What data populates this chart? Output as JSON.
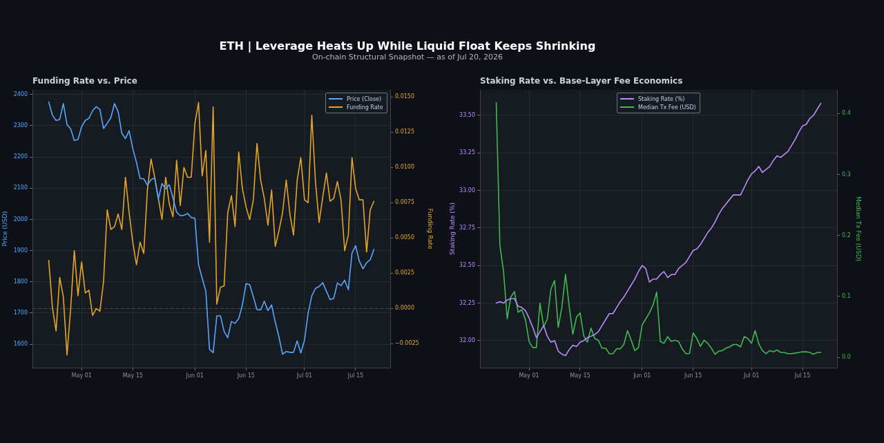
{
  "chart_data": [
    {
      "type": "other",
      "title": "ETH | Leverage Heats Up While Liquid Float Keeps Shrinking",
      "subtitle": "On-chain Structural Snapshot — as of Jul 20, 2026"
    },
    {
      "type": "line",
      "title": "Funding Rate vs. Price",
      "ylabel": "Price (USD)",
      "y2label": "Funding Rate",
      "x": [
        "2026-04-22",
        "2026-04-23",
        "2026-04-24",
        "2026-04-25",
        "2026-04-26",
        "2026-04-27",
        "2026-04-28",
        "2026-04-29",
        "2026-04-30",
        "2026-05-01",
        "2026-05-02",
        "2026-05-03",
        "2026-05-04",
        "2026-05-05",
        "2026-05-06",
        "2026-05-07",
        "2026-05-08",
        "2026-05-09",
        "2026-05-10",
        "2026-05-11",
        "2026-05-12",
        "2026-05-13",
        "2026-05-14",
        "2026-05-15",
        "2026-05-16",
        "2026-05-17",
        "2026-05-18",
        "2026-05-19",
        "2026-05-20",
        "2026-05-21",
        "2026-05-22",
        "2026-05-23",
        "2026-05-24",
        "2026-05-25",
        "2026-05-26",
        "2026-05-27",
        "2026-05-28",
        "2026-05-29",
        "2026-05-30",
        "2026-05-31",
        "2026-06-01",
        "2026-06-02",
        "2026-06-03",
        "2026-06-04",
        "2026-06-05",
        "2026-06-06",
        "2026-06-07",
        "2026-06-08",
        "2026-06-09",
        "2026-06-10",
        "2026-06-11",
        "2026-06-12",
        "2026-06-13",
        "2026-06-14",
        "2026-06-15",
        "2026-06-16",
        "2026-06-17",
        "2026-06-18",
        "2026-06-19",
        "2026-06-20",
        "2026-06-21",
        "2026-06-22",
        "2026-06-23",
        "2026-06-24",
        "2026-06-25",
        "2026-06-26",
        "2026-06-27",
        "2026-06-28",
        "2026-06-29",
        "2026-06-30",
        "2026-07-01",
        "2026-07-02",
        "2026-07-03",
        "2026-07-04",
        "2026-07-05",
        "2026-07-06",
        "2026-07-07",
        "2026-07-08",
        "2026-07-09",
        "2026-07-10",
        "2026-07-11",
        "2026-07-12",
        "2026-07-13",
        "2026-07-14",
        "2026-07-15",
        "2026-07-16",
        "2026-07-17",
        "2026-07-18",
        "2026-07-19",
        "2026-07-20"
      ],
      "series": [
        {
          "name": "Price (Close)",
          "color": "#58a6ff",
          "values": [
            2376,
            2334,
            2317,
            2320,
            2371,
            2304,
            2290,
            2253,
            2256,
            2297,
            2317,
            2324,
            2348,
            2361,
            2352,
            2291,
            2308,
            2326,
            2371,
            2345,
            2276,
            2259,
            2284,
            2227,
            2183,
            2131,
            2130,
            2110,
            2127,
            2133,
            2065,
            2115,
            2098,
            2111,
            2068,
            2023,
            2012,
            2013,
            2019,
            2006,
            2004,
            1855,
            1811,
            1770,
            1584,
            1573,
            1691,
            1691,
            1641,
            1621,
            1673,
            1667,
            1682,
            1726,
            1794,
            1791,
            1752,
            1711,
            1710,
            1738,
            1708,
            1726,
            1671,
            1624,
            1568,
            1577,
            1574,
            1574,
            1611,
            1572,
            1613,
            1700,
            1755,
            1779,
            1785,
            1797,
            1770,
            1743,
            1747,
            1796,
            1788,
            1805,
            1775,
            1892,
            1916,
            1866,
            1842,
            1861,
            1871,
            1904
          ]
        },
        {
          "name": "Funding Rate",
          "color": "#e3a52a",
          "axis": "y2",
          "values": [
            0.0034,
            0.0001,
            -0.0016,
            0.0022,
            0.0008,
            -0.0033,
            0.0,
            0.0041,
            0.0009,
            0.0033,
            0.0011,
            0.0013,
            -0.0005,
            0.0,
            -0.0002,
            0.0019,
            0.007,
            0.0056,
            0.0058,
            0.0067,
            0.0056,
            0.0093,
            0.0068,
            0.0047,
            0.0031,
            0.0047,
            0.0039,
            0.0084,
            0.0106,
            0.0093,
            0.0078,
            0.0063,
            0.0093,
            0.0074,
            0.0065,
            0.0105,
            0.0073,
            0.01,
            0.0093,
            0.0093,
            0.0131,
            0.0146,
            0.0094,
            0.0112,
            0.0047,
            0.0143,
            0.0003,
            0.0015,
            0.0016,
            0.0068,
            0.008,
            0.0058,
            0.0111,
            0.0085,
            0.0072,
            0.0063,
            0.0077,
            0.0117,
            0.0091,
            0.0078,
            0.0059,
            0.0084,
            0.0044,
            0.0055,
            0.0068,
            0.0091,
            0.0067,
            0.0052,
            0.0091,
            0.0107,
            0.0077,
            0.0075,
            0.0137,
            0.009,
            0.0061,
            0.0079,
            0.0096,
            0.0076,
            0.0078,
            0.009,
            0.0077,
            0.0041,
            0.0052,
            0.0107,
            0.0085,
            0.0077,
            0.0077,
            0.004,
            0.007,
            0.0076
          ]
        }
      ],
      "xlim": [
        "2026-04-17T13:00",
        "2026-07-24T11:00"
      ],
      "xticks": [
        {
          "value": "2026-05-01",
          "label": "May 01"
        },
        {
          "value": "2026-05-15",
          "label": "May 15"
        },
        {
          "value": "2026-06-01",
          "label": "Jun 01"
        },
        {
          "value": "2026-06-15",
          "label": "Jun 15"
        },
        {
          "value": "2026-07-01",
          "label": "Jul 01"
        },
        {
          "value": "2026-07-15",
          "label": "Jul 15"
        }
      ],
      "ylim": [
        1525,
        2415
      ],
      "yticks": [
        1600,
        1700,
        1800,
        1900,
        2000,
        2100,
        2200,
        2300,
        2400
      ],
      "y2lim": [
        -0.0042,
        0.0155
      ],
      "y2ticks": [
        {
          "value": -0.0025,
          "label": "−0.0025"
        },
        {
          "value": 0,
          "label": "0.0000"
        },
        {
          "value": 0.0025,
          "label": "0.0025"
        },
        {
          "value": 0.005,
          "label": "0.0050"
        },
        {
          "value": 0.0075,
          "label": "0.0075"
        },
        {
          "value": 0.01,
          "label": "0.0100"
        },
        {
          "value": 0.0125,
          "label": "0.0125"
        },
        {
          "value": 0.015,
          "label": "0.0150"
        }
      ],
      "ref_lines": [
        {
          "axis": "y2",
          "value": 0,
          "color": "#4b525b",
          "line_style": "dashed"
        }
      ],
      "grid": true,
      "legend": "top right"
    },
    {
      "type": "line",
      "title": "Staking Rate vs. Base-Layer Fee Economics",
      "ylabel": "Staking Rate (%)",
      "y2label": "Median Tx Fee (USD)",
      "x": [
        "2026-04-22",
        "2026-04-23",
        "2026-04-24",
        "2026-04-25",
        "2026-04-26",
        "2026-04-27",
        "2026-04-28",
        "2026-04-29",
        "2026-04-30",
        "2026-05-01",
        "2026-05-02",
        "2026-05-03",
        "2026-05-04",
        "2026-05-05",
        "2026-05-06",
        "2026-05-07",
        "2026-05-08",
        "2026-05-09",
        "2026-05-10",
        "2026-05-11",
        "2026-05-12",
        "2026-05-13",
        "2026-05-14",
        "2026-05-15",
        "2026-05-16",
        "2026-05-17",
        "2026-05-18",
        "2026-05-19",
        "2026-05-20",
        "2026-05-21",
        "2026-05-22",
        "2026-05-23",
        "2026-05-24",
        "2026-05-25",
        "2026-05-26",
        "2026-05-27",
        "2026-05-28",
        "2026-05-29",
        "2026-05-30",
        "2026-05-31",
        "2026-06-01",
        "2026-06-02",
        "2026-06-03",
        "2026-06-04",
        "2026-06-05",
        "2026-06-06",
        "2026-06-07",
        "2026-06-08",
        "2026-06-09",
        "2026-06-10",
        "2026-06-11",
        "2026-06-12",
        "2026-06-13",
        "2026-06-14",
        "2026-06-15",
        "2026-06-16",
        "2026-06-17",
        "2026-06-18",
        "2026-06-19",
        "2026-06-20",
        "2026-06-21",
        "2026-06-22",
        "2026-06-23",
        "2026-06-24",
        "2026-06-25",
        "2026-06-26",
        "2026-06-27",
        "2026-06-28",
        "2026-06-29",
        "2026-06-30",
        "2026-07-01",
        "2026-07-02",
        "2026-07-03",
        "2026-07-04",
        "2026-07-05",
        "2026-07-06",
        "2026-07-07",
        "2026-07-08",
        "2026-07-09",
        "2026-07-10",
        "2026-07-11",
        "2026-07-12",
        "2026-07-13",
        "2026-07-14",
        "2026-07-15",
        "2026-07-16",
        "2026-07-17",
        "2026-07-18",
        "2026-07-19",
        "2026-07-20"
      ],
      "series": [
        {
          "name": "Staking Rate (%)",
          "color": "#bc8cff",
          "values": [
            32.25,
            32.26,
            32.25,
            32.27,
            32.28,
            32.28,
            32.23,
            32.22,
            32.2,
            32.15,
            32.09,
            32.02,
            32.06,
            32.1,
            32.03,
            31.99,
            32.0,
            31.93,
            31.91,
            31.9,
            31.94,
            31.97,
            31.96,
            31.99,
            32.0,
            32.02,
            32.03,
            32.04,
            32.06,
            32.1,
            32.14,
            32.18,
            32.18,
            32.22,
            32.26,
            32.29,
            32.33,
            32.37,
            32.41,
            32.46,
            32.5,
            32.48,
            32.39,
            32.41,
            32.41,
            32.44,
            32.46,
            32.42,
            32.44,
            32.44,
            32.48,
            32.5,
            32.52,
            32.56,
            32.6,
            32.61,
            32.64,
            32.68,
            32.72,
            32.75,
            32.79,
            32.84,
            32.88,
            32.91,
            32.94,
            32.97,
            32.97,
            32.97,
            33.02,
            33.07,
            33.11,
            33.13,
            33.16,
            33.12,
            33.14,
            33.16,
            33.2,
            33.23,
            33.22,
            33.24,
            33.26,
            33.3,
            33.34,
            33.39,
            33.43,
            33.44,
            33.48,
            33.5,
            33.54,
            33.58
          ]
        },
        {
          "name": "Median Tx Fee (USD)",
          "color": "#3fb950",
          "axis": "y2",
          "values": [
            0.418,
            0.184,
            0.141,
            0.063,
            0.099,
            0.108,
            0.074,
            0.078,
            0.062,
            0.026,
            0.016,
            0.016,
            0.089,
            0.05,
            0.063,
            0.112,
            0.126,
            0.049,
            0.082,
            0.136,
            0.084,
            0.038,
            0.066,
            0.073,
            0.035,
            0.025,
            0.048,
            0.031,
            0.028,
            0.015,
            0.015,
            0.006,
            0.006,
            0.014,
            0.014,
            0.021,
            0.044,
            0.028,
            0.011,
            0.016,
            0.053,
            0.063,
            0.073,
            0.086,
            0.107,
            0.026,
            0.023,
            0.034,
            0.026,
            0.028,
            0.026,
            0.014,
            0.006,
            0.006,
            0.04,
            0.031,
            0.018,
            0.028,
            0.023,
            0.015,
            0.005,
            0.01,
            0.011,
            0.015,
            0.017,
            0.021,
            0.021,
            0.017,
            0.034,
            0.031,
            0.023,
            0.044,
            0.022,
            0.011,
            0.006,
            0.011,
            0.009,
            0.012,
            0.008,
            0.008,
            0.006,
            0.006,
            0.007,
            0.008,
            0.009,
            0.009,
            0.008,
            0.005,
            0.008,
            0.008
          ]
        }
      ],
      "xlim": [
        "2026-04-17T13:00",
        "2026-07-24T11:00"
      ],
      "xticks": [
        {
          "value": "2026-05-01",
          "label": "May 01"
        },
        {
          "value": "2026-05-15",
          "label": "May 15"
        },
        {
          "value": "2026-06-01",
          "label": "Jun 01"
        },
        {
          "value": "2026-06-15",
          "label": "Jun 15"
        },
        {
          "value": "2026-07-01",
          "label": "Jul 01"
        },
        {
          "value": "2026-07-15",
          "label": "Jul 15"
        }
      ],
      "ylim": [
        31.82,
        33.67
      ],
      "yticks": [
        {
          "value": 32,
          "label": "32.00"
        },
        {
          "value": 32.25,
          "label": "32.25"
        },
        {
          "value": 32.5,
          "label": "32.50"
        },
        {
          "value": 32.75,
          "label": "32.75"
        },
        {
          "value": 33,
          "label": "33.00"
        },
        {
          "value": 33.25,
          "label": "33.25"
        },
        {
          "value": 33.5,
          "label": "33.50"
        }
      ],
      "y2lim": [
        -0.017,
        0.439
      ],
      "y2ticks": [
        {
          "value": 0,
          "label": "0.0"
        },
        {
          "value": 0.1,
          "label": "0.1"
        },
        {
          "value": 0.2,
          "label": "0.2"
        },
        {
          "value": 0.3,
          "label": "0.3"
        },
        {
          "value": 0.4,
          "label": "0.4"
        }
      ],
      "grid": true,
      "legend": "top"
    }
  ]
}
